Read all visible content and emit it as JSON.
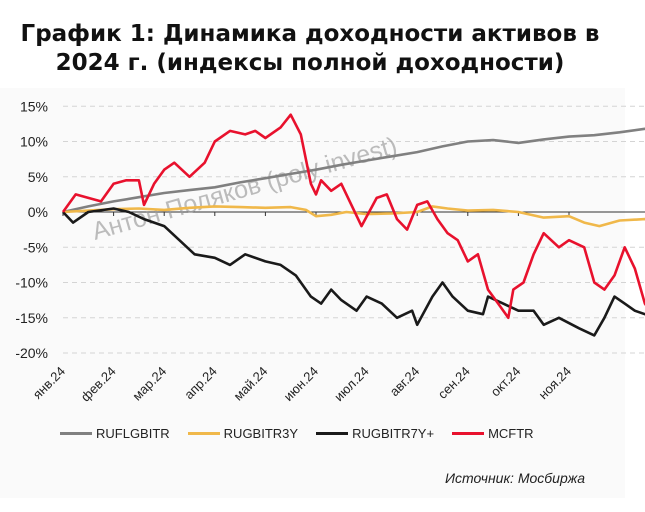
{
  "chart_data": {
    "type": "line",
    "title": "График 1: Динамика доходности активов в 2024 г. (индексы полной доходности)",
    "title_lines": [
      "График 1: Динамика доходности активов в",
      "2024 г. (индексы полной доходности)"
    ],
    "xlabel": "",
    "ylabel": "",
    "x_unit": "months since 01.01.2024",
    "xlim": [
      0,
      11.85
    ],
    "ylim": [
      -20,
      15
    ],
    "yticks": [
      15,
      10,
      5,
      0,
      -5,
      -10,
      -15,
      -20
    ],
    "ytick_labels": [
      "15%",
      "10%",
      "5%",
      "0%",
      "-5%",
      "-10%",
      "-15%",
      "-20%"
    ],
    "xticks": [
      0,
      1,
      2,
      3,
      4,
      5,
      6,
      7,
      8,
      9,
      10
    ],
    "xtick_labels": [
      "янв.24",
      "фев.24",
      "мар.24",
      "апр.24",
      "май.24",
      "июн.24",
      "июл.24",
      "авг.24",
      "сен.24",
      "окт.24",
      "ноя.24"
    ],
    "grid": "horizontal dashed",
    "legend_position": "bottom",
    "series": [
      {
        "name": "RUFLGBITR",
        "color": "#808080",
        "x": [
          0,
          0.5,
          1,
          1.5,
          2,
          2.5,
          3,
          3.5,
          4,
          4.5,
          5,
          5.5,
          6,
          6.5,
          7,
          7.5,
          8,
          8.5,
          9,
          9.5,
          10,
          10.5,
          11,
          11.5,
          11.85
        ],
        "y": [
          0,
          0.8,
          1.5,
          2.1,
          2.7,
          3.1,
          3.5,
          4.2,
          4.8,
          5.4,
          6,
          6.7,
          7.3,
          7.9,
          8.5,
          9.3,
          10,
          10.2,
          9.8,
          10.3,
          10.7,
          10.9,
          11.3,
          11.8,
          12.5
        ]
      },
      {
        "name": "RUGBITR3Y",
        "color": "#f0b84a",
        "x": [
          0,
          0.5,
          1,
          1.5,
          2,
          2.5,
          3,
          3.5,
          4,
          4.5,
          4.8,
          5,
          5.3,
          5.6,
          6,
          6.5,
          7,
          7.3,
          7.6,
          8,
          8.5,
          9,
          9.5,
          10,
          10.3,
          10.6,
          11,
          11.5,
          11.85
        ],
        "y": [
          0,
          0.2,
          0.4,
          0.5,
          0.3,
          0.6,
          0.8,
          0.7,
          0.6,
          0.7,
          0.3,
          -0.6,
          -0.4,
          0,
          -0.3,
          -0.2,
          0,
          0.8,
          0.5,
          0.2,
          0.3,
          0,
          -0.8,
          -0.6,
          -1.5,
          -2,
          -1.2,
          -1,
          -1.5
        ]
      },
      {
        "name": "RUGBITR7Y+",
        "color": "#1a1a1a",
        "x": [
          0,
          0.2,
          0.5,
          1,
          1.3,
          1.6,
          2,
          2.3,
          2.6,
          3,
          3.3,
          3.6,
          4,
          4.3,
          4.6,
          4.9,
          5.1,
          5.3,
          5.5,
          5.8,
          6,
          6.3,
          6.6,
          6.9,
          7,
          7.3,
          7.5,
          7.7,
          8,
          8.3,
          8.4,
          8.7,
          9,
          9.3,
          9.5,
          9.8,
          10.2,
          10.5,
          10.7,
          10.9,
          11.1,
          11.3,
          11.5,
          11.85
        ],
        "y": [
          0,
          -1.5,
          0,
          0.5,
          0,
          -1,
          -2,
          -4,
          -6,
          -6.5,
          -7.5,
          -6,
          -7,
          -7.5,
          -9,
          -12,
          -13,
          -11,
          -12.5,
          -14,
          -12,
          -13,
          -15,
          -14,
          -16,
          -12,
          -10,
          -12,
          -14,
          -14.5,
          -12,
          -13,
          -14,
          -14,
          -16,
          -15,
          -16.5,
          -17.5,
          -15,
          -12,
          -13,
          -14,
          -14.5,
          -14
        ]
      },
      {
        "name": "MCFTR",
        "color": "#e8112d",
        "x": [
          0,
          0.25,
          0.5,
          0.75,
          1,
          1.25,
          1.5,
          1.6,
          1.8,
          2,
          2.2,
          2.5,
          2.8,
          3,
          3.3,
          3.6,
          3.8,
          4,
          4.3,
          4.5,
          4.7,
          4.9,
          5,
          5.1,
          5.3,
          5.5,
          5.7,
          5.9,
          6.2,
          6.4,
          6.6,
          6.8,
          7,
          7.2,
          7.4,
          7.6,
          7.8,
          8,
          8.2,
          8.4,
          8.6,
          8.8,
          8.9,
          9.1,
          9.3,
          9.5,
          9.8,
          10,
          10.3,
          10.5,
          10.7,
          10.9,
          11.1,
          11.3,
          11.5,
          11.7,
          11.85
        ],
        "y": [
          0,
          2.5,
          2,
          1.5,
          4,
          4.5,
          4.5,
          1,
          4,
          6,
          7,
          5,
          7,
          10,
          11.5,
          11,
          11.5,
          10.5,
          12,
          13.8,
          11,
          4,
          2.5,
          4.5,
          3,
          4,
          1,
          -2,
          2,
          2.5,
          -1,
          -2.5,
          1,
          1.5,
          -1,
          -3,
          -4,
          -7,
          -6,
          -11,
          -13,
          -15,
          -11,
          -10,
          -6,
          -3,
          -5,
          -4,
          -5,
          -10,
          -11,
          -9,
          -5,
          -8,
          -13,
          -15,
          -12.5
        ]
      }
    ],
    "watermark": "Антон Поляков (poly invest)",
    "source": "Источник: Мосбиржа"
  }
}
